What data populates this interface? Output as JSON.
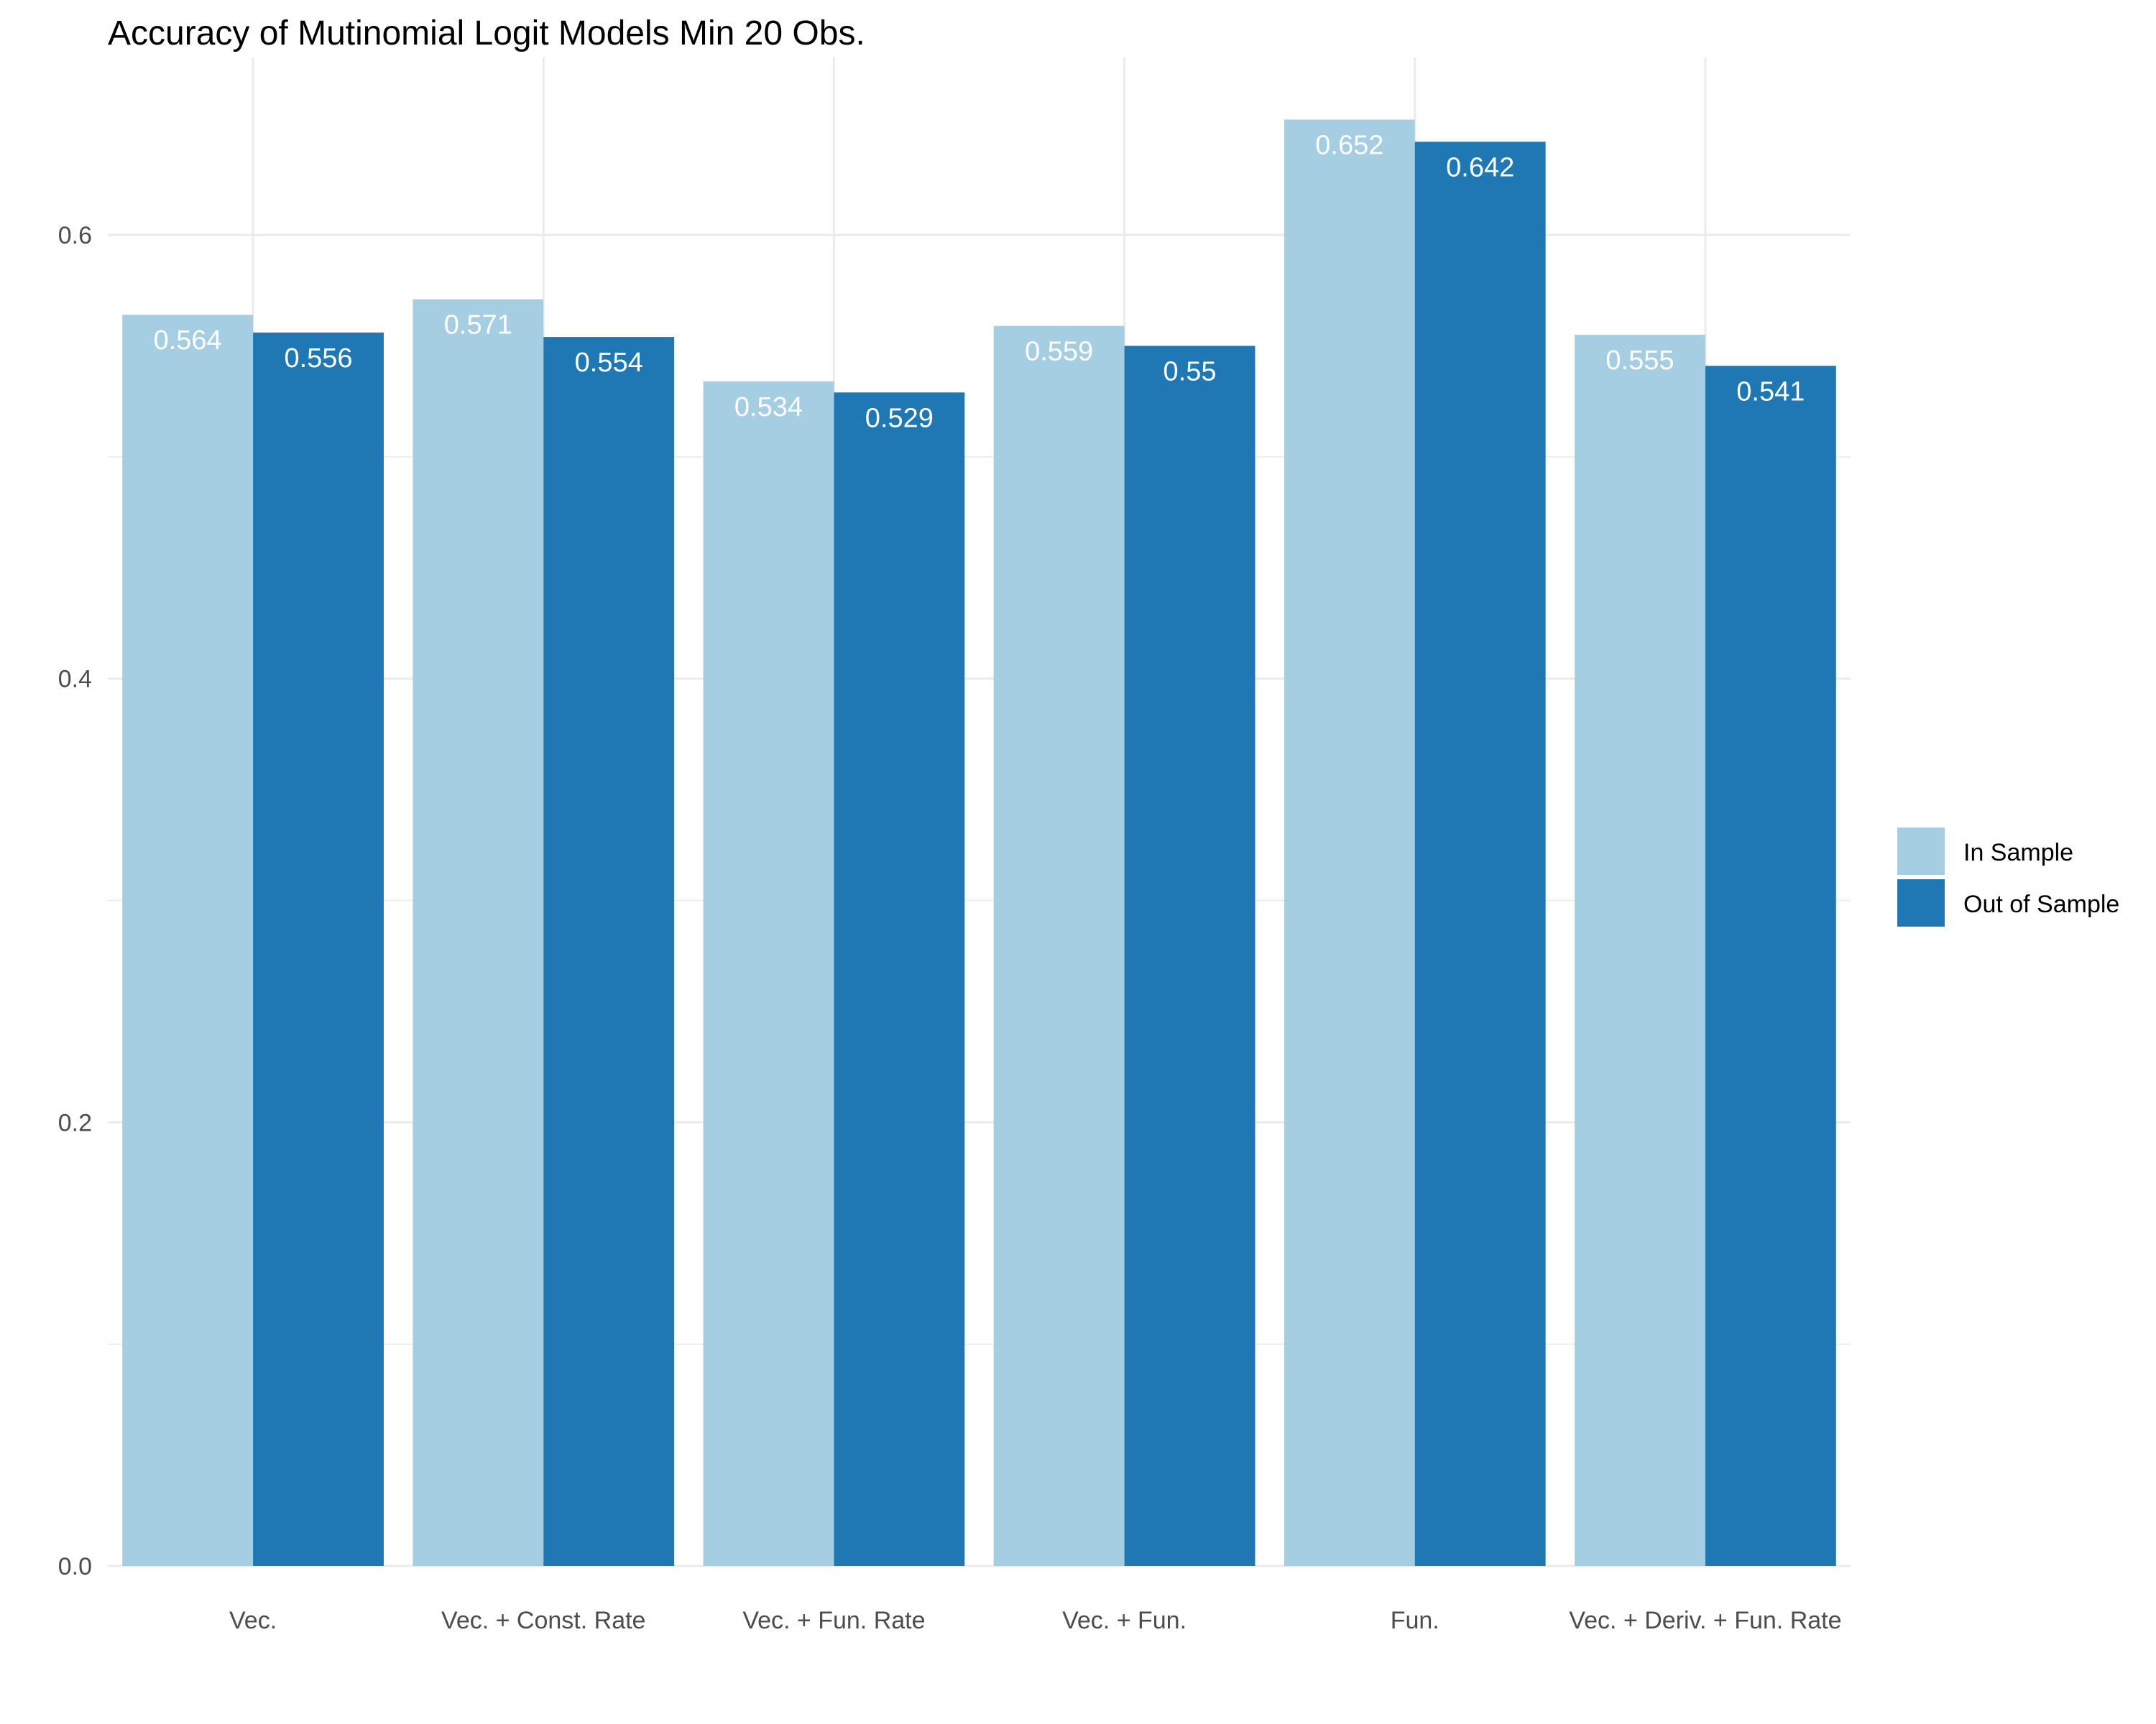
{
  "chart_data": {
    "type": "bar",
    "title": "Accuracy of Mutinomial Logit Models Min 20 Obs.",
    "xlabel": "",
    "ylabel": "",
    "ylim": [
      0,
      0.68
    ],
    "yticks": [
      0.0,
      0.2,
      0.4,
      0.6
    ],
    "ytick_labels": [
      "0.0",
      "0.2",
      "0.4",
      "0.6"
    ],
    "grid": true,
    "legend_position": "right",
    "categories": [
      "Vec.",
      "Vec. + Const. Rate",
      "Vec. + Fun. Rate",
      "Vec. + Fun.",
      "Fun.",
      "Vec. + Deriv. + Fun. Rate"
    ],
    "series": [
      {
        "name": "In Sample",
        "color": "#a6cee3",
        "values": [
          0.564,
          0.571,
          0.534,
          0.559,
          0.652,
          0.555
        ],
        "labels": [
          "0.564",
          "0.571",
          "0.534",
          "0.559",
          "0.652",
          "0.555"
        ]
      },
      {
        "name": "Out of Sample",
        "color": "#1f78b4",
        "values": [
          0.556,
          0.554,
          0.529,
          0.55,
          0.642,
          0.541
        ],
        "labels": [
          "0.556",
          "0.554",
          "0.529",
          "0.55",
          "0.642",
          "0.541"
        ]
      }
    ],
    "grid_color": "#ebebeb"
  }
}
